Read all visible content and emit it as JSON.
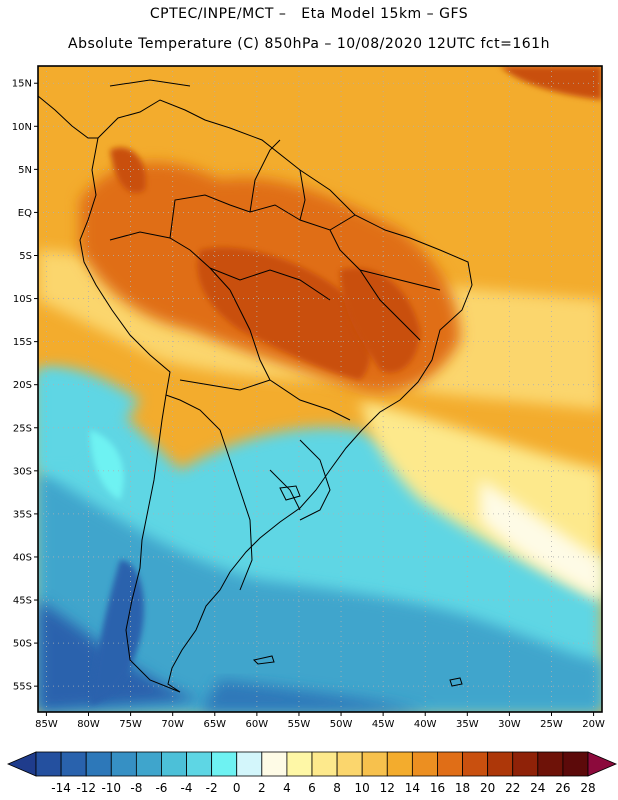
{
  "header": {
    "line1": "CPTEC/INPE/MCT –   Eta Model 15km – GFS",
    "line2": "Absolute Temperature (C) 850hPa – 10/08/2020 12UTC fct=161h"
  },
  "map": {
    "lat_ticks": [
      "15N",
      "10N",
      "5N",
      "EQ",
      "5S",
      "10S",
      "15S",
      "20S",
      "25S",
      "30S",
      "35S",
      "40S",
      "45S",
      "50S",
      "55S"
    ],
    "lon_ticks": [
      "85W",
      "80W",
      "75W",
      "70W",
      "65W",
      "60W",
      "55W",
      "50W",
      "45W",
      "40W",
      "35W",
      "30W",
      "25W",
      "20W"
    ],
    "extent": {
      "lon_min": -86,
      "lon_max": -19,
      "lat_min": -58,
      "lat_max": 17
    }
  },
  "legend": {
    "labels": [
      "-14",
      "-12",
      "-10",
      "-8",
      "-6",
      "-4",
      "-2",
      "0",
      "2",
      "4",
      "6",
      "8",
      "10",
      "12",
      "14",
      "16",
      "18",
      "20",
      "22",
      "24",
      "26",
      "28"
    ],
    "colors": [
      "#1f3c8c",
      "#24509f",
      "#2962ad",
      "#2d78b9",
      "#3690c4",
      "#3fa5cc",
      "#4cc0d8",
      "#5ed6e4",
      "#6ef2f2",
      "#d3f6fb",
      "#fefbe6",
      "#fef7a6",
      "#fde98c",
      "#fbd66d",
      "#f7c14d",
      "#f3ac2d",
      "#ec8f21",
      "#e06e17",
      "#c9500f",
      "#ad3709",
      "#8f2208",
      "#6e1208",
      "#5c0a0a",
      "#8c0a3c"
    ]
  }
}
